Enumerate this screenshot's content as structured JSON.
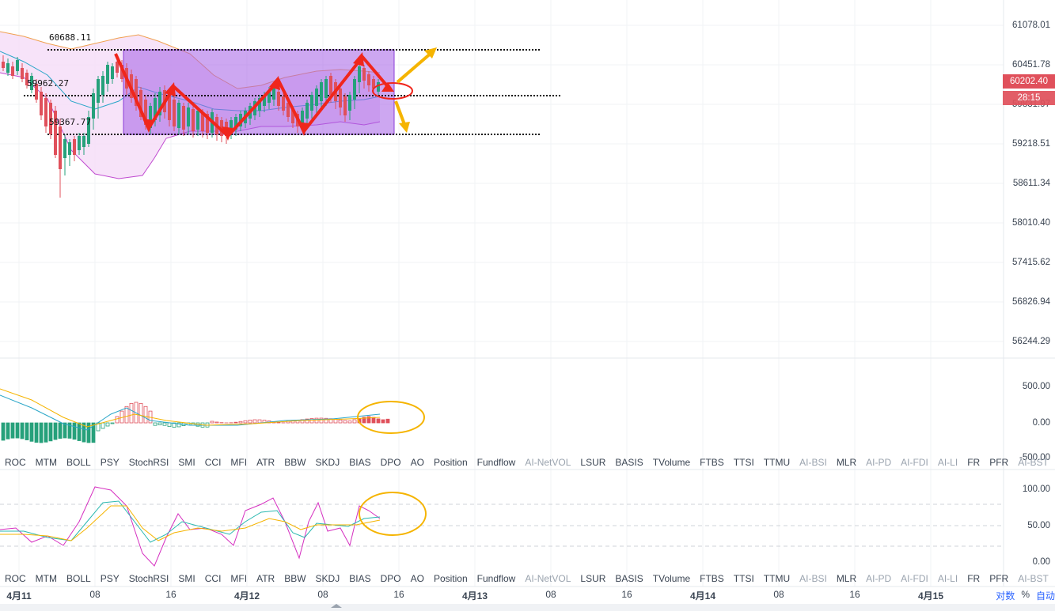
{
  "price_axis": {
    "labels": [
      "61078.01",
      "60451.78",
      "59831.97",
      "59218.51",
      "58611.34",
      "58010.40",
      "57415.62",
      "56826.94",
      "56244.29"
    ],
    "last_price": "60202.40",
    "countdown": "28:15"
  },
  "levels": {
    "top": "60688.11",
    "mid": "59962.27",
    "bottom": "59367.77"
  },
  "macd_axis": {
    "labels": [
      "500.00",
      "0.00",
      "-500.00"
    ]
  },
  "kdj_axis": {
    "labels": [
      "100.00",
      "50.00",
      "0.00"
    ]
  },
  "indicator_tabs": [
    {
      "label": "ROC",
      "dim": false
    },
    {
      "label": "MTM",
      "dim": false
    },
    {
      "label": "BOLL",
      "dim": false
    },
    {
      "label": "PSY",
      "dim": false
    },
    {
      "label": "StochRSI",
      "dim": false
    },
    {
      "label": "SMI",
      "dim": false
    },
    {
      "label": "CCI",
      "dim": false
    },
    {
      "label": "MFI",
      "dim": false
    },
    {
      "label": "ATR",
      "dim": false
    },
    {
      "label": "BBW",
      "dim": false
    },
    {
      "label": "SKDJ",
      "dim": false
    },
    {
      "label": "BIAS",
      "dim": false
    },
    {
      "label": "DPO",
      "dim": false
    },
    {
      "label": "AO",
      "dim": false
    },
    {
      "label": "Position",
      "dim": false
    },
    {
      "label": "Fundflow",
      "dim": false
    },
    {
      "label": "AI-NetVOL",
      "dim": true
    },
    {
      "label": "LSUR",
      "dim": false
    },
    {
      "label": "BASIS",
      "dim": false
    },
    {
      "label": "TVolume",
      "dim": false
    },
    {
      "label": "FTBS",
      "dim": false
    },
    {
      "label": "TTSI",
      "dim": false
    },
    {
      "label": "TTMU",
      "dim": false
    },
    {
      "label": "AI-BSI",
      "dim": true
    },
    {
      "label": "MLR",
      "dim": false
    },
    {
      "label": "AI-PD",
      "dim": true
    },
    {
      "label": "AI-FDI",
      "dim": true
    },
    {
      "label": "AI-LI",
      "dim": true
    },
    {
      "label": "FR",
      "dim": false
    },
    {
      "label": "PFR",
      "dim": false
    },
    {
      "label": "AI-BST",
      "dim": true
    }
  ],
  "time_axis": [
    {
      "label": "4月11",
      "bold": true
    },
    {
      "label": "08",
      "bold": false
    },
    {
      "label": "16",
      "bold": false
    },
    {
      "label": "4月12",
      "bold": true
    },
    {
      "label": "08",
      "bold": false
    },
    {
      "label": "16",
      "bold": false
    },
    {
      "label": "4月13",
      "bold": true
    },
    {
      "label": "08",
      "bold": false
    },
    {
      "label": "16",
      "bold": false
    },
    {
      "label": "4月14",
      "bold": true
    },
    {
      "label": "08",
      "bold": false
    },
    {
      "label": "16",
      "bold": false
    },
    {
      "label": "4月15",
      "bold": true
    }
  ],
  "controls": {
    "log_label": "对数",
    "percent_label": "%",
    "auto_label": "自动"
  },
  "colors": {
    "up": "#e0505b",
    "down": "#26a17b",
    "range_box": "#b46fe8",
    "arrow_red": "#f0261c",
    "arrow_yellow": "#f5b400",
    "ellipse_yellow": "#f5b400",
    "boll_fill": "#f3d9f7"
  }
}
